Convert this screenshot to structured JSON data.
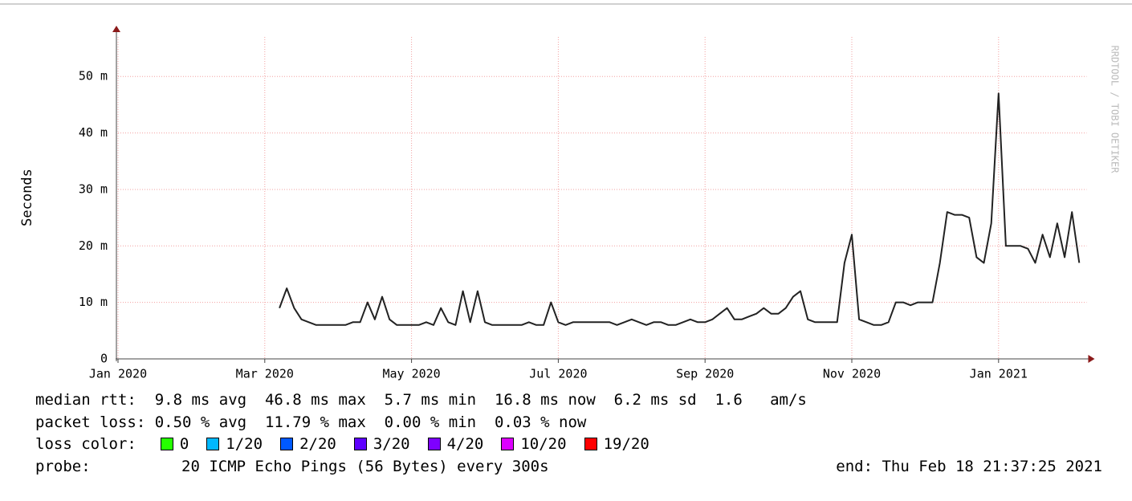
{
  "chart_data": {
    "type": "line",
    "y_label": "Seconds",
    "watermark": "RRDTOOL / TOBI OETIKER",
    "xlim": [
      0,
      13.2
    ],
    "xticks": [
      {
        "value": 0,
        "label": "Jan 2020"
      },
      {
        "value": 2,
        "label": "Mar 2020"
      },
      {
        "value": 4,
        "label": "May 2020"
      },
      {
        "value": 6,
        "label": "Jul 2020"
      },
      {
        "value": 8,
        "label": "Sep 2020"
      },
      {
        "value": 10,
        "label": "Nov 2020"
      },
      {
        "value": 12,
        "label": "Jan 2021"
      }
    ],
    "ylim": [
      0,
      0.057
    ],
    "yticks": [
      {
        "value": 0,
        "label": "0"
      },
      {
        "value": 0.01,
        "label": "10 m"
      },
      {
        "value": 0.02,
        "label": "20 m"
      },
      {
        "value": 0.03,
        "label": "30 m"
      },
      {
        "value": 0.04,
        "label": "40 m"
      },
      {
        "value": 0.05,
        "label": "50 m"
      }
    ],
    "grid": true,
    "series": [
      {
        "name": "median rtt",
        "color": "#222222",
        "x": [
          2.2,
          2.3,
          2.4,
          2.5,
          2.6,
          2.7,
          2.8,
          2.9,
          3.0,
          3.1,
          3.2,
          3.3,
          3.4,
          3.5,
          3.6,
          3.7,
          3.8,
          3.9,
          4.0,
          4.1,
          4.2,
          4.3,
          4.4,
          4.5,
          4.6,
          4.7,
          4.8,
          4.9,
          5.0,
          5.1,
          5.2,
          5.3,
          5.4,
          5.5,
          5.6,
          5.7,
          5.8,
          5.9,
          6.0,
          6.1,
          6.2,
          6.3,
          6.4,
          6.5,
          6.6,
          6.7,
          6.8,
          6.9,
          7.0,
          7.1,
          7.2,
          7.3,
          7.4,
          7.5,
          7.6,
          7.7,
          7.8,
          7.9,
          8.0,
          8.1,
          8.2,
          8.3,
          8.4,
          8.5,
          8.6,
          8.7,
          8.8,
          8.9,
          9.0,
          9.1,
          9.2,
          9.3,
          9.4,
          9.5,
          9.6,
          9.7,
          9.8,
          9.9,
          10.0,
          10.1,
          10.2,
          10.3,
          10.4,
          10.5,
          10.6,
          10.7,
          10.8,
          10.9,
          11.0,
          11.1,
          11.2,
          11.3,
          11.4,
          11.5,
          11.6,
          11.7,
          11.8,
          11.9,
          12.0,
          12.1,
          12.2,
          12.3,
          12.4,
          12.5,
          12.6,
          12.7,
          12.8,
          12.9,
          13.0,
          13.1
        ],
        "values": [
          0.009,
          0.0125,
          0.009,
          0.007,
          0.0065,
          0.006,
          0.006,
          0.006,
          0.006,
          0.006,
          0.0065,
          0.0065,
          0.01,
          0.007,
          0.011,
          0.007,
          0.006,
          0.006,
          0.006,
          0.006,
          0.0065,
          0.006,
          0.009,
          0.0065,
          0.006,
          0.012,
          0.0065,
          0.012,
          0.0065,
          0.006,
          0.006,
          0.006,
          0.006,
          0.006,
          0.0065,
          0.006,
          0.006,
          0.01,
          0.0065,
          0.006,
          0.0065,
          0.0065,
          0.0065,
          0.0065,
          0.0065,
          0.0065,
          0.006,
          0.0065,
          0.007,
          0.0065,
          0.006,
          0.0065,
          0.0065,
          0.006,
          0.006,
          0.0065,
          0.007,
          0.0065,
          0.0065,
          0.007,
          0.008,
          0.009,
          0.007,
          0.007,
          0.0075,
          0.008,
          0.009,
          0.008,
          0.008,
          0.009,
          0.011,
          0.012,
          0.007,
          0.0065,
          0.0065,
          0.0065,
          0.0065,
          0.017,
          0.022,
          0.007,
          0.0065,
          0.006,
          0.006,
          0.0065,
          0.01,
          0.01,
          0.0095,
          0.01,
          0.01,
          0.01,
          0.017,
          0.026,
          0.0255,
          0.0255,
          0.025,
          0.018,
          0.017,
          0.024,
          0.047,
          0.02,
          0.02,
          0.02,
          0.0195,
          0.017,
          0.022,
          0.018,
          0.024,
          0.018,
          0.026,
          0.017
        ]
      }
    ],
    "stats": [
      "median rtt:  9.8 ms avg  46.8 ms max  5.7 ms min  16.8 ms now  6.2 ms sd  1.6   am/s",
      "packet loss: 0.50 % avg  11.79 % max  0.00 % min  0.03 % now"
    ],
    "loss_legend": {
      "label": "loss color:",
      "items": [
        {
          "name": "0",
          "color": "#26ff00"
        },
        {
          "name": "1/20",
          "color": "#00b8ff"
        },
        {
          "name": "2/20",
          "color": "#0059ff"
        },
        {
          "name": "3/20",
          "color": "#5e00ff"
        },
        {
          "name": "4/20",
          "color": "#7e00ff"
        },
        {
          "name": "10/20",
          "color": "#dd00ff"
        },
        {
          "name": "19/20",
          "color": "#ff0000"
        }
      ]
    },
    "probe_label": "probe:",
    "probe": "20 ICMP Echo Pings (56 Bytes) every 300s",
    "end": "end: Thu Feb 18 21:37:25 2021"
  }
}
